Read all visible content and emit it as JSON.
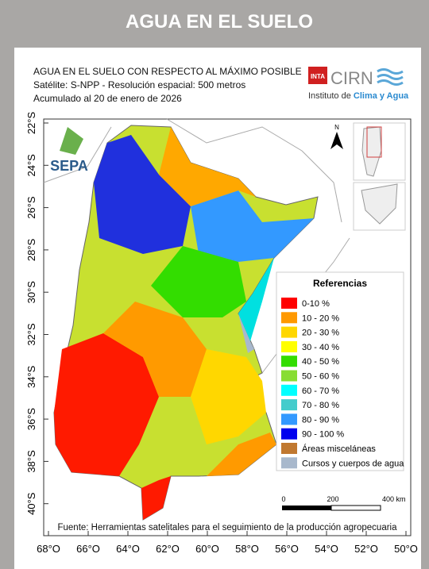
{
  "page_title": "AGUA EN EL SUELO",
  "map": {
    "title": "AGUA EN EL SUELO CON RESPECTO AL MÁXIMO POSIBLE",
    "subtitle": "Satélite: S-NPP - Resolución espacial: 500 metros",
    "date": "Acumulado al 20 de enero de 2026",
    "logo": {
      "inta": "INTA",
      "cirn": "CIRN",
      "institute": "Instituto de",
      "institute_highlight": "Clima y Agua"
    },
    "sepa": "SEPA",
    "north": "N",
    "lat_labels": [
      "22°S",
      "24°S",
      "26°S",
      "28°S",
      "30°S",
      "32°S",
      "34°S",
      "36°S",
      "38°S",
      "40°S"
    ],
    "lon_labels": [
      "68°O",
      "66°O",
      "64°O",
      "62°O",
      "60°O",
      "58°O",
      "56°O",
      "54°O",
      "52°O",
      "50°O"
    ],
    "legend": {
      "title": "Referencias",
      "items": [
        {
          "label": "0-10 %",
          "color": "#ff0000"
        },
        {
          "label": "10 - 20 %",
          "color": "#ff9900"
        },
        {
          "label": "20 - 30 %",
          "color": "#ffd700"
        },
        {
          "label": "30 - 40 %",
          "color": "#ffff00"
        },
        {
          "label": "40 - 50 %",
          "color": "#33dd00"
        },
        {
          "label": "50 - 60 %",
          "color": "#88dd33"
        },
        {
          "label": "60 - 70 %",
          "color": "#00ffff"
        },
        {
          "label": "70 - 80 %",
          "color": "#44cccc"
        },
        {
          "label": "80 - 90 %",
          "color": "#3399ff"
        },
        {
          "label": "90 - 100 %",
          "color": "#0000ee"
        },
        {
          "label": "Áreas misceláneas",
          "color": "#c07830"
        },
        {
          "label": "Cursos y cuerpos de agua",
          "color": "#a8b8cc"
        }
      ]
    },
    "scale": {
      "labels": [
        "0",
        "200",
        "400 km"
      ]
    },
    "source": "Fuente: Herramientas satelitales para el seguimiento de la producción agropecuaria"
  }
}
